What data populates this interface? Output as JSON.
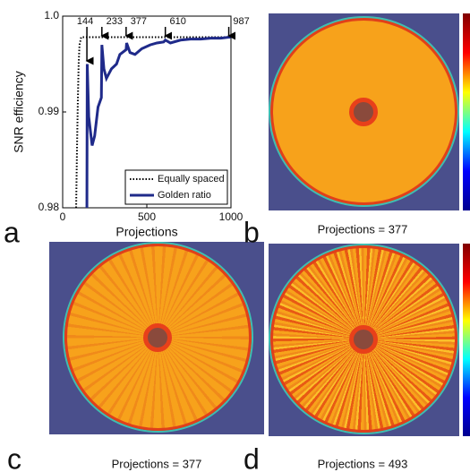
{
  "chart_data": {
    "type": "line",
    "xlabel": "Projections",
    "ylabel": "SNR efficiency",
    "xlim": [
      0,
      1000
    ],
    "xticks": [
      0,
      500,
      1000
    ],
    "ylim": [
      0.98,
      1.0
    ],
    "yticks": [
      0.98,
      0.99,
      {
        "value": 1.0,
        "label": "1.0"
      }
    ],
    "annotations": [
      144,
      233,
      377,
      610,
      987
    ],
    "legend": "lower right",
    "series": [
      {
        "name": "Equally spaced",
        "color": "#000000",
        "style": "dotted",
        "x": [
          80,
          85,
          90,
          95,
          100,
          110,
          120,
          150,
          1000
        ],
        "values": [
          0.98,
          0.986,
          0.991,
          0.995,
          0.997,
          0.9978,
          0.9978,
          0.9978,
          0.9978
        ]
      },
      {
        "name": "Golden ratio",
        "color": "#1f2a8a",
        "style": "solid",
        "x": [
          144,
          146,
          155,
          165,
          175,
          190,
          210,
          230,
          233,
          245,
          260,
          290,
          320,
          340,
          377,
          380,
          400,
          430,
          470,
          520,
          560,
          600,
          610,
          640,
          700,
          760,
          820,
          880,
          940,
          987,
          1000
        ],
        "values": [
          0.98,
          0.995,
          0.9895,
          0.988,
          0.9865,
          0.9875,
          0.9905,
          0.9915,
          0.997,
          0.9945,
          0.9935,
          0.9945,
          0.995,
          0.996,
          0.9965,
          0.9972,
          0.9962,
          0.996,
          0.9966,
          0.997,
          0.9972,
          0.9973,
          0.9975,
          0.9972,
          0.9975,
          0.9976,
          0.9976,
          0.9977,
          0.9977,
          0.9978,
          0.9978
        ]
      }
    ]
  },
  "panels": [
    {
      "letter": "a"
    },
    {
      "letter": "b",
      "caption": "Projections = 377"
    },
    {
      "letter": "c",
      "caption": "Projections = 377"
    },
    {
      "letter": "d",
      "caption": "Projections = 493"
    }
  ]
}
